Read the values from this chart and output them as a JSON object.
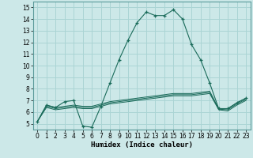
{
  "title": "",
  "xlabel": "Humidex (Indice chaleur)",
  "xlim": [
    -0.5,
    23.5
  ],
  "ylim": [
    4.5,
    15.5
  ],
  "xticks": [
    0,
    1,
    2,
    3,
    4,
    5,
    6,
    7,
    8,
    9,
    10,
    11,
    12,
    13,
    14,
    15,
    16,
    17,
    18,
    19,
    20,
    21,
    22,
    23
  ],
  "yticks": [
    5,
    6,
    7,
    8,
    9,
    10,
    11,
    12,
    13,
    14,
    15
  ],
  "bg_color": "#cce8e8",
  "grid_color": "#aad4d4",
  "line_color": "#1a6b5a",
  "main_curve": [
    5.2,
    6.6,
    6.4,
    6.9,
    7.0,
    4.8,
    4.7,
    6.5,
    8.5,
    10.5,
    12.2,
    13.7,
    14.6,
    14.3,
    14.3,
    14.8,
    14.0,
    11.8,
    10.5,
    8.5,
    6.3,
    6.3,
    6.8,
    7.2
  ],
  "line2": [
    5.2,
    6.6,
    6.4,
    6.5,
    6.6,
    6.5,
    6.5,
    6.7,
    6.9,
    7.0,
    7.1,
    7.2,
    7.3,
    7.4,
    7.5,
    7.6,
    7.6,
    7.6,
    7.7,
    7.8,
    6.3,
    6.3,
    6.8,
    7.2
  ],
  "line3": [
    5.2,
    6.5,
    6.3,
    6.4,
    6.5,
    6.4,
    6.4,
    6.6,
    6.8,
    6.9,
    7.0,
    7.1,
    7.2,
    7.3,
    7.4,
    7.5,
    7.5,
    7.5,
    7.6,
    7.7,
    6.25,
    6.2,
    6.7,
    7.1
  ],
  "line4": [
    5.2,
    6.4,
    6.2,
    6.3,
    6.4,
    6.3,
    6.3,
    6.5,
    6.7,
    6.8,
    6.9,
    7.0,
    7.1,
    7.2,
    7.3,
    7.4,
    7.4,
    7.4,
    7.5,
    7.6,
    6.2,
    6.1,
    6.6,
    7.0
  ]
}
